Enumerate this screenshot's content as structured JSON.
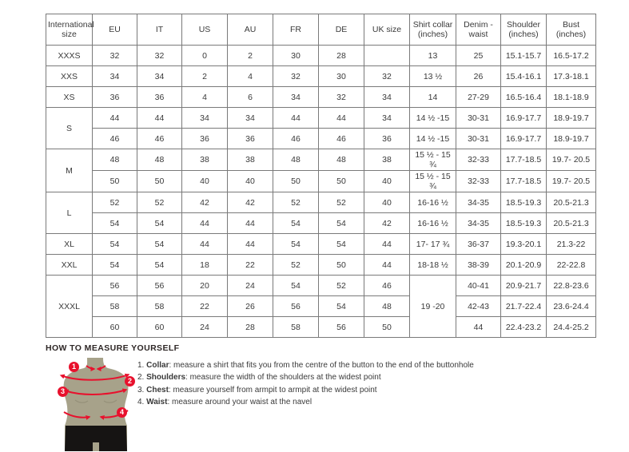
{
  "colors": {
    "accent_red": "#e8112d",
    "mannequin_body": "#a7a28a",
    "mannequin_shorts": "#161413",
    "table_border": "#7a7a7a",
    "text": "#3a3a3a"
  },
  "table": {
    "headers": [
      "International size",
      "EU",
      "IT",
      "US",
      "AU",
      "FR",
      "DE",
      "UK size",
      "Shirt collar (inches)",
      "Denim - waist",
      "Shoulder (inches)",
      "Bust (inches)"
    ],
    "groups": [
      {
        "size": "XXXS",
        "collar_merged": null,
        "rows": [
          [
            "32",
            "32",
            "0",
            "2",
            "30",
            "28",
            "",
            "13",
            "25",
            "15.1-15.7",
            "16.5-17.2"
          ]
        ]
      },
      {
        "size": "XXS",
        "collar_merged": null,
        "rows": [
          [
            "34",
            "34",
            "2",
            "4",
            "32",
            "30",
            "32",
            "13 ½",
            "26",
            "15.4-16.1",
            "17.3-18.1"
          ]
        ]
      },
      {
        "size": "XS",
        "collar_merged": null,
        "rows": [
          [
            "36",
            "36",
            "4",
            "6",
            "34",
            "32",
            "34",
            "14",
            "27-29",
            "16.5-16.4",
            "18.1-18.9"
          ]
        ]
      },
      {
        "size": "S",
        "collar_merged": null,
        "rows": [
          [
            "44",
            "44",
            "34",
            "34",
            "44",
            "44",
            "34",
            "14 ½ -15",
            "30-31",
            "16.9-17.7",
            "18.9-19.7"
          ],
          [
            "46",
            "46",
            "36",
            "36",
            "46",
            "46",
            "36",
            "14 ½ -15",
            "30-31",
            "16.9-17.7",
            "18.9-19.7"
          ]
        ]
      },
      {
        "size": "M",
        "collar_merged": null,
        "rows": [
          [
            "48",
            "48",
            "38",
            "38",
            "48",
            "48",
            "38",
            "15 ½ - 15 ¾",
            "32-33",
            "17.7-18.5",
            "19.7- 20.5"
          ],
          [
            "50",
            "50",
            "40",
            "40",
            "50",
            "50",
            "40",
            "15 ½ - 15 ¾",
            "32-33",
            "17.7-18.5",
            "19.7- 20.5"
          ]
        ]
      },
      {
        "size": "L",
        "collar_merged": null,
        "rows": [
          [
            "52",
            "52",
            "42",
            "42",
            "52",
            "52",
            "40",
            "16-16 ½",
            "34-35",
            "18.5-19.3",
            "20.5-21.3"
          ],
          [
            "54",
            "54",
            "44",
            "44",
            "54",
            "54",
            "42",
            "16-16 ½",
            "34-35",
            "18.5-19.3",
            "20.5-21.3"
          ]
        ]
      },
      {
        "size": "XL",
        "collar_merged": null,
        "rows": [
          [
            "54",
            "54",
            "44",
            "44",
            "54",
            "54",
            "44",
            "17- 17 ¾",
            "36-37",
            "19.3-20.1",
            "21.3-22"
          ]
        ]
      },
      {
        "size": "XXL",
        "collar_merged": null,
        "rows": [
          [
            "54",
            "54",
            "18",
            "22",
            "52",
            "50",
            "44",
            "18-18 ½",
            "38-39",
            "20.1-20.9",
            "22-22.8"
          ]
        ]
      },
      {
        "size": "XXXL",
        "collar_merged": "19 -20",
        "rows": [
          [
            "56",
            "56",
            "20",
            "24",
            "54",
            "52",
            "46",
            "40-41",
            "20.9-21.7",
            "22.8-23.6"
          ],
          [
            "58",
            "58",
            "22",
            "26",
            "56",
            "54",
            "48",
            "42-43",
            "21.7-22.4",
            "23.6-24.4"
          ],
          [
            "60",
            "60",
            "24",
            "28",
            "58",
            "56",
            "50",
            "44",
            "22.4-23.2",
            "24.4-25.2"
          ]
        ]
      }
    ]
  },
  "measure": {
    "heading": "HOW TO MEASURE YOURSELF",
    "steps": [
      {
        "num": "1.",
        "label": "Collar",
        "text": ": measure a shirt that fits you from the centre of the button to the end of the buttonhole"
      },
      {
        "num": "2.",
        "label": "Shoulders",
        "text": ": measure the width of the shoulders at the widest point"
      },
      {
        "num": "3.",
        "label": "Chest",
        "text": ": measure yourself from armpit to armpit at the widest point"
      },
      {
        "num": "4.",
        "label": "Waist",
        "text": ": measure around your waist at the navel"
      }
    ],
    "badges": [
      "1",
      "2",
      "3",
      "4"
    ]
  }
}
